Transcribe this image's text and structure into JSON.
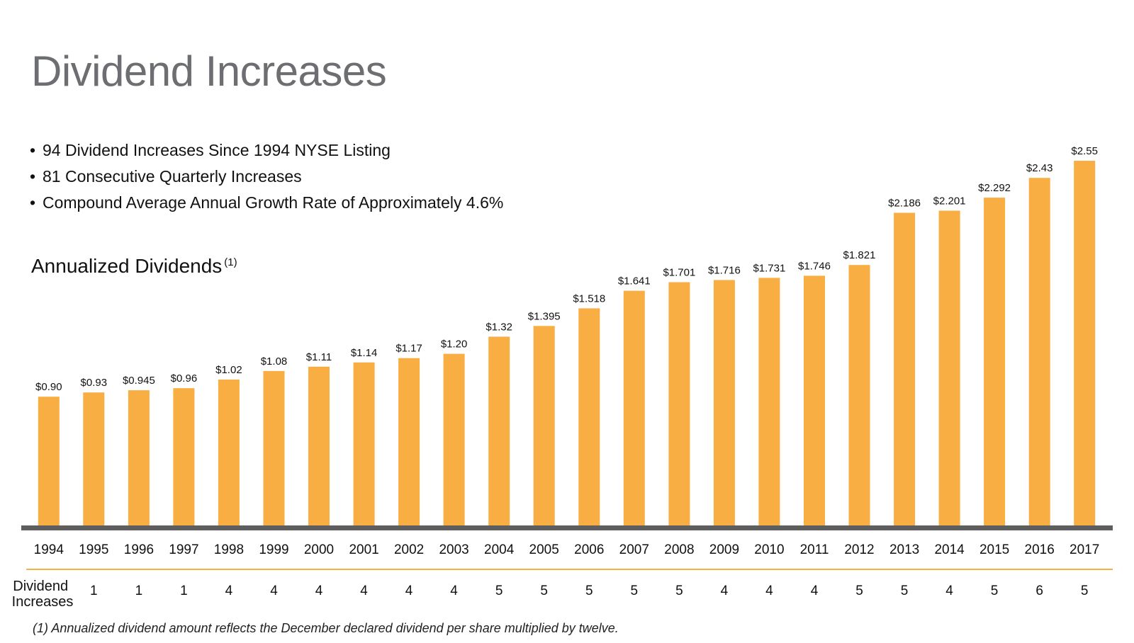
{
  "page": {
    "title": "Dividend Increases",
    "bullets": [
      "94 Dividend Increases Since 1994 NYSE Listing",
      "81 Consecutive Quarterly Increases",
      "Compound Average Annual Growth Rate of Approximately 4.6%"
    ],
    "bullet_glyph": "•",
    "subtitle": "Annualized Dividends",
    "subtitle_note": "(1)",
    "row_label_line1": "Dividend",
    "row_label_line2": "Increases",
    "footnote": "(1) Annualized dividend amount reflects the December declared dividend per share multiplied by twelve."
  },
  "colors": {
    "bar": "#f9ae43",
    "axis": "#5e5e5e",
    "separator": "#f4b24a",
    "title": "#6d6e71",
    "text": "#111111"
  },
  "chart_data": {
    "type": "bar",
    "categories": [
      "1994",
      "1995",
      "1996",
      "1997",
      "1998",
      "1999",
      "2000",
      "2001",
      "2002",
      "2003",
      "2004",
      "2005",
      "2006",
      "2007",
      "2008",
      "2009",
      "2010",
      "2011",
      "2012",
      "2013",
      "2014",
      "2015",
      "2016",
      "2017"
    ],
    "values": [
      0.9,
      0.93,
      0.945,
      0.96,
      1.02,
      1.08,
      1.11,
      1.14,
      1.17,
      1.2,
      1.32,
      1.395,
      1.518,
      1.641,
      1.701,
      1.716,
      1.731,
      1.746,
      1.821,
      2.186,
      2.201,
      2.292,
      2.43,
      2.55
    ],
    "data_labels": [
      "$0.90",
      "$0.93",
      "$0.945",
      "$0.96",
      "$1.02",
      "$1.08",
      "$1.11",
      "$1.14",
      "$1.17",
      "$1.20",
      "$1.32",
      "$1.395",
      "$1.518",
      "$1.641",
      "$1.701",
      "$1.716",
      "$1.731",
      "$1.746",
      "$1.821",
      "$2.186",
      "$2.201",
      "$2.292",
      "$2.43",
      "$2.55"
    ],
    "dividend_increases": [
      "1",
      "1",
      "1",
      "4",
      "4",
      "4",
      "4",
      "4",
      "4",
      "5",
      "5",
      "5",
      "5",
      "5",
      "4",
      "4",
      "4",
      "5",
      "5",
      "4",
      "5",
      "6",
      "5"
    ],
    "ylim": [
      0,
      2.55
    ],
    "grid": false,
    "legend": "none"
  }
}
